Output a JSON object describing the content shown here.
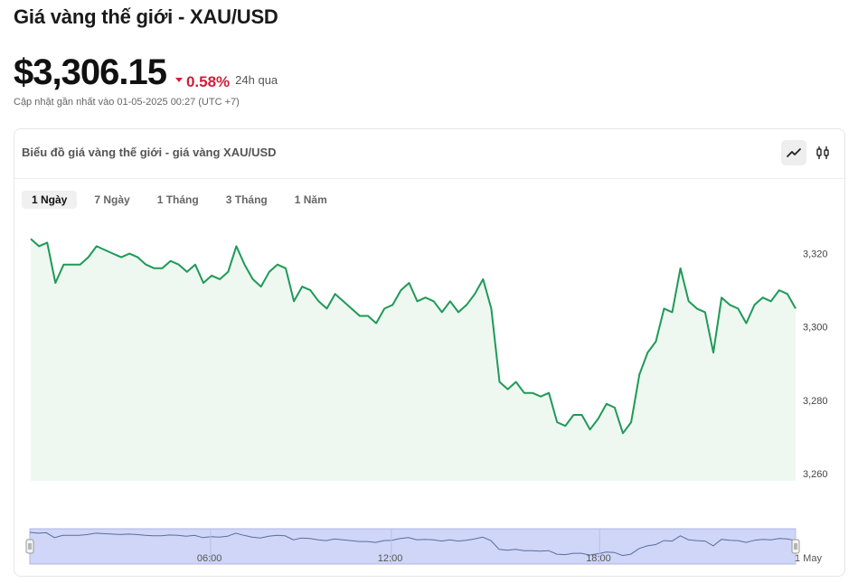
{
  "page": {
    "title": "Giá vàng thế giới - XAU/USD",
    "price": "$3,306.15",
    "change_pct": "0.58%",
    "change_direction": "down",
    "change_color": "#d11f3a",
    "period": "24h qua",
    "updated": "Cập nhật gần nhất vào 01-05-2025 00:27 (UTC +7)"
  },
  "card": {
    "title": "Biểu đồ giá vàng thế giới - giá vàng XAU/USD",
    "toggle": [
      {
        "icon": "line-chart-icon",
        "active": true
      },
      {
        "icon": "candlestick-icon",
        "active": false
      }
    ],
    "tabs": [
      {
        "label": "1 Ngày",
        "active": true
      },
      {
        "label": "7 Ngày",
        "active": false
      },
      {
        "label": "1 Tháng",
        "active": false
      },
      {
        "label": "3 Tháng",
        "active": false
      },
      {
        "label": "1 Năm",
        "active": false
      }
    ]
  },
  "chart_data": {
    "type": "area",
    "line_color": "#1e9a57",
    "fill_color": "#eef8f1",
    "ylim": [
      3258,
      3330
    ],
    "y_ticks": [
      3260,
      3280,
      3300,
      3320
    ],
    "y_tick_labels": [
      "3,260",
      "3,280",
      "3,300",
      "3,320"
    ],
    "values": [
      3324,
      3322,
      3323,
      3312,
      3317,
      3317,
      3317,
      3319,
      3322,
      3321,
      3320,
      3319,
      3320,
      3319,
      3317,
      3316,
      3316,
      3318,
      3317,
      3315,
      3317,
      3312,
      3314,
      3313,
      3315,
      3322,
      3317,
      3313,
      3311,
      3315,
      3317,
      3316,
      3307,
      3311,
      3310,
      3307,
      3305,
      3309,
      3307,
      3305,
      3303,
      3303,
      3301,
      3305,
      3306,
      3310,
      3312,
      3307,
      3308,
      3307,
      3304,
      3307,
      3304,
      3306,
      3309,
      3313,
      3305,
      3285,
      3283,
      3285,
      3282,
      3282,
      3281,
      3282,
      3274,
      3273,
      3276,
      3276,
      3272,
      3275,
      3279,
      3278,
      3271,
      3274,
      3287,
      3293,
      3296,
      3305,
      3304,
      3316,
      3307,
      3305,
      3304,
      3293,
      3308,
      3306,
      3305,
      3301,
      3306,
      3308,
      3307,
      3310,
      3309,
      3305
    ],
    "navigator": {
      "x_ticks": [
        "06:00",
        "12:00",
        "18:00",
        "1 May"
      ],
      "x_tick_positions": [
        0.236,
        0.472,
        0.744,
        1.0
      ]
    }
  }
}
